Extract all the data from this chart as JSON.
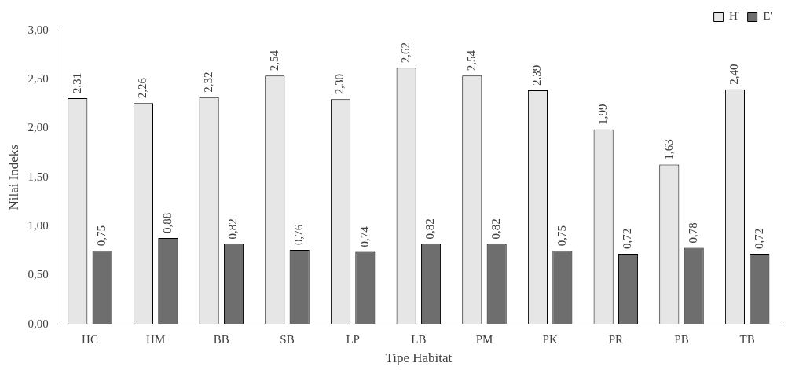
{
  "chart_data": {
    "type": "bar",
    "xlabel": "Tipe Habitat",
    "ylabel": "Nilai Indeks",
    "categories": [
      "HC",
      "HM",
      "BB",
      "SB",
      "LP",
      "LB",
      "PM",
      "PK",
      "PR",
      "PB",
      "TB"
    ],
    "series": [
      {
        "name": "H'",
        "color": "#e6e6e6",
        "values": [
          2.31,
          2.26,
          2.32,
          2.54,
          2.3,
          2.62,
          2.54,
          2.39,
          1.99,
          1.63,
          2.4
        ],
        "value_labels": [
          "2,31",
          "2,26",
          "2,32",
          "2,54",
          "2,30",
          "2,62",
          "2,54",
          "2,39",
          "1,99",
          "1,63",
          "2,40"
        ]
      },
      {
        "name": "E'",
        "color": "#6e6e6e",
        "values": [
          0.75,
          0.88,
          0.82,
          0.76,
          0.74,
          0.82,
          0.82,
          0.75,
          0.72,
          0.78,
          0.72
        ],
        "value_labels": [
          "0,75",
          "0,88",
          "0,82",
          "0,76",
          "0,74",
          "0,82",
          "0,82",
          "0,75",
          "0,72",
          "0,78",
          "0,72"
        ]
      }
    ],
    "ylim": [
      0,
      3
    ],
    "yticks": [
      {
        "value": 0,
        "label": "0,00"
      },
      {
        "value": 0.5,
        "label": "0,50"
      },
      {
        "value": 1,
        "label": "1,00"
      },
      {
        "value": 1.5,
        "label": "1,50"
      },
      {
        "value": 2,
        "label": "2,00"
      },
      {
        "value": 2.5,
        "label": "2,50"
      },
      {
        "value": 3,
        "label": "3,00"
      }
    ],
    "legend": "top right",
    "grid": false
  }
}
